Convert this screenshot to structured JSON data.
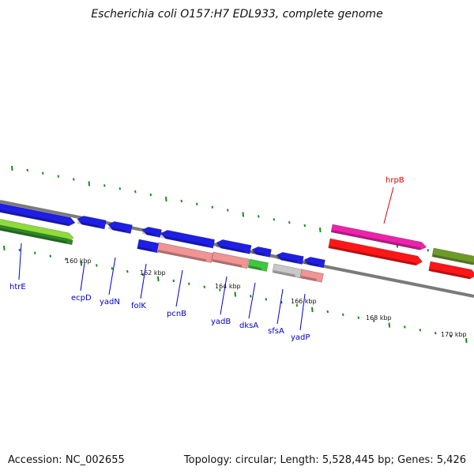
{
  "title": "Escherichia coli O157:H7 EDL933, complete genome",
  "footer": {
    "accession": "Accession: NC_002655",
    "stats": "Topology: circular; Length: 5,528,445 bp; Genes: 5,426"
  },
  "colors": {
    "backbone": "#7a7a7a",
    "tick": "#1a8a1a",
    "ruler_label": "#111111",
    "gene_label": "#0000cc",
    "highlight_label": "#dd0000",
    "forward_gene": "#1e1ee6",
    "reverse_gene": "#1e1ee6",
    "cds_salmon": "#f09494",
    "cds_red": "#ff1616",
    "cds_magenta": "#ee22aa",
    "cds_green": "#3ec83e",
    "cds_olive": "#6e9a28",
    "cds_gray": "#c8c8c8",
    "cds_lime": "#8edc3a"
  },
  "ruler": {
    "unit": "kbp",
    "labels": [
      "160 kbp",
      "162 kbp",
      "164 kbp",
      "166 kbp",
      "168 kbp",
      "170 kbp"
    ]
  },
  "genes": [
    {
      "name": "htrE",
      "strand": "+",
      "color": "forward_gene"
    },
    {
      "name": "ecpD",
      "strand": "-",
      "color": "forward_gene"
    },
    {
      "name": "yadN",
      "strand": "-",
      "color": "forward_gene"
    },
    {
      "name": "folK",
      "strand": "-",
      "color": "forward_gene"
    },
    {
      "name": "pcnB",
      "strand": "-",
      "color": "forward_gene"
    },
    {
      "name": "yadB",
      "strand": "-",
      "color": "forward_gene"
    },
    {
      "name": "dksA",
      "strand": "-",
      "color": "forward_gene"
    },
    {
      "name": "sfsA",
      "strand": "-",
      "color": "forward_gene"
    },
    {
      "name": "yadP",
      "strand": "+",
      "color": "forward_gene"
    },
    {
      "name": "hrpB",
      "strand": "+",
      "color": "cds_magenta",
      "highlight": true
    }
  ]
}
